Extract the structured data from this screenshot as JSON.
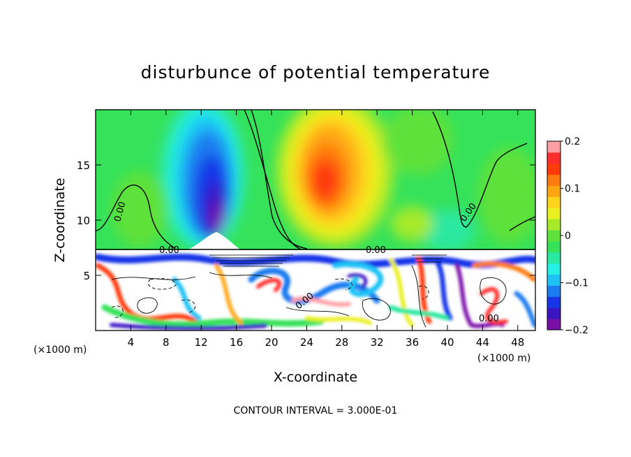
{
  "chart_data": {
    "type": "heatmap",
    "title": "disturbunce of potential temperature",
    "xlabel": "X-coordinate",
    "ylabel": "Z-coordinate",
    "x_unit_left": "(×1000 m)",
    "x_unit_right": "(×1000 m)",
    "xlim": [
      0,
      50
    ],
    "ylim": [
      0,
      20
    ],
    "x_ticks": [
      4,
      8,
      12,
      16,
      20,
      24,
      28,
      32,
      36,
      40,
      44,
      48
    ],
    "y_ticks": [
      5,
      10,
      15
    ],
    "contour_labels": [
      "0.00",
      "0.00",
      "0.00",
      "0.00",
      "0.00",
      "0.00",
      "0.00"
    ],
    "footnote": "CONTOUR INTERVAL = 3.000E-01",
    "colorbar": {
      "range": [
        -0.2,
        0.2
      ],
      "ticks": [
        {
          "value": 0.2,
          "label": "0.2"
        },
        {
          "value": 0.1,
          "label": "0.1"
        },
        {
          "value": 0,
          "label": "0"
        },
        {
          "value": -0.1,
          "label": "−0.1"
        },
        {
          "value": -0.2,
          "label": "−0.2"
        }
      ],
      "colors": [
        "#7a0fa8",
        "#3a16c2",
        "#1736e8",
        "#1c7cf0",
        "#1fc2f5",
        "#24f0e3",
        "#29e8a0",
        "#35e25a",
        "#5ee13a",
        "#a6ea2a",
        "#e9f01f",
        "#ffd41a",
        "#ffa713",
        "#ff7a0e",
        "#ff3b0b",
        "#ff2d2d",
        "#ff9ea4"
      ]
    },
    "features": [
      {
        "name": "cold anomaly",
        "x": 13.5,
        "z": 11,
        "value": -0.2
      },
      {
        "name": "warm anomaly",
        "x": 27,
        "z": 14,
        "value": 0.12
      }
    ]
  }
}
